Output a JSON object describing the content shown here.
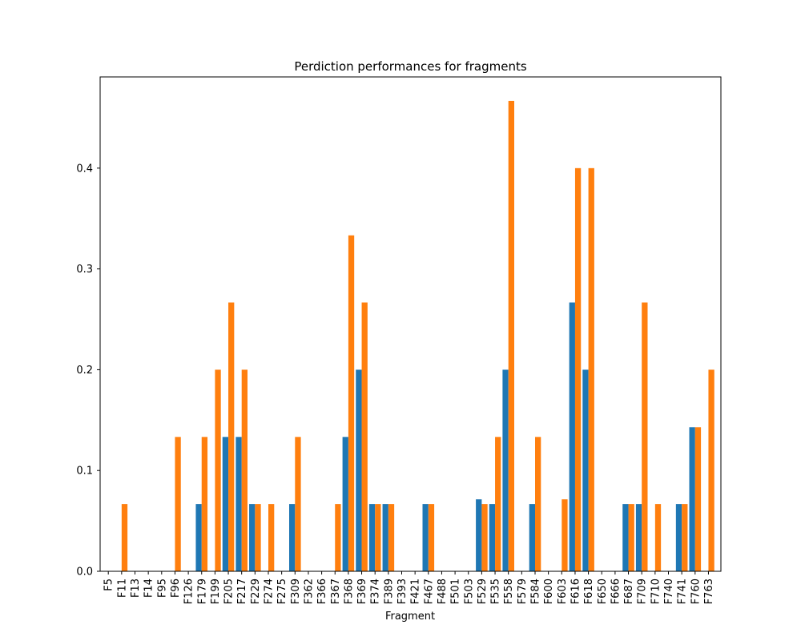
{
  "chart_data": {
    "type": "bar",
    "title": "Perdiction performances for fragments",
    "xlabel": "Fragment",
    "ylabel": "",
    "ylim": [
      0,
      0.4905
    ],
    "yticks": [
      0.0,
      0.1,
      0.2,
      0.3,
      0.4
    ],
    "ytick_labels": [
      "0.0",
      "0.1",
      "0.2",
      "0.3",
      "0.4"
    ],
    "grid": false,
    "categories": [
      "F5",
      "F11",
      "F13",
      "F14",
      "F95",
      "F96",
      "F126",
      "F179",
      "F199",
      "F205",
      "F217",
      "F229",
      "F274",
      "F275",
      "F309",
      "F362",
      "F366",
      "F367",
      "F368",
      "F369",
      "F374",
      "F389",
      "F393",
      "F421",
      "F467",
      "F488",
      "F501",
      "F503",
      "F529",
      "F535",
      "F558",
      "F579",
      "F584",
      "F600",
      "F603",
      "F616",
      "F618",
      "F650",
      "F666",
      "F687",
      "F709",
      "F710",
      "F740",
      "F741",
      "F760",
      "F763"
    ],
    "series": [
      {
        "color": "#1f77b4",
        "values": [
          0,
          0,
          0,
          0,
          0,
          0,
          0,
          0.0667,
          0,
          0.1333,
          0.1333,
          0.0667,
          0,
          0,
          0.0667,
          0,
          0,
          0,
          0.1333,
          0.2,
          0.0667,
          0.0667,
          0,
          0,
          0.0667,
          0,
          0,
          0,
          0.0714,
          0.0667,
          0.2,
          0,
          0.0667,
          0,
          0,
          0.2667,
          0.2,
          0,
          0,
          0.0667,
          0.0667,
          0,
          0,
          0.0667,
          0.1429,
          0
        ]
      },
      {
        "color": "#ff7f0e",
        "values": [
          0,
          0.0667,
          0,
          0,
          0,
          0.1333,
          0,
          0.1333,
          0.2,
          0.2667,
          0.2,
          0.0667,
          0.0667,
          0,
          0.1333,
          0,
          0,
          0.0667,
          0.3333,
          0.2667,
          0.0667,
          0.0667,
          0,
          0,
          0.0667,
          0,
          0,
          0,
          0.0667,
          0.1333,
          0.4667,
          0,
          0.1333,
          0,
          0.0714,
          0.4,
          0.4,
          0,
          0,
          0.0667,
          0.2667,
          0.0667,
          0,
          0.0667,
          0.1429,
          0.2
        ]
      }
    ]
  }
}
